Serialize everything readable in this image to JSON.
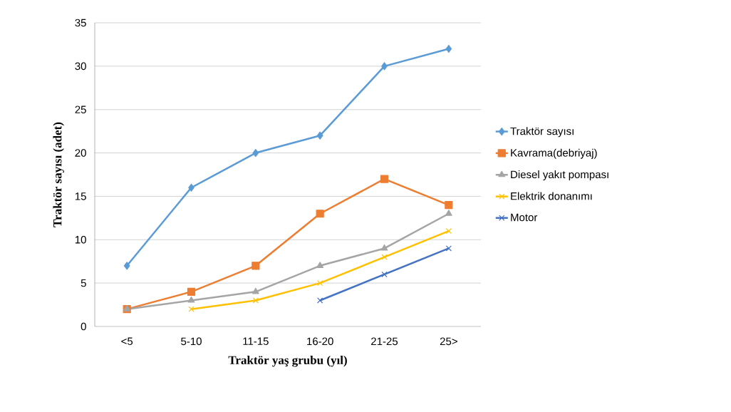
{
  "chart_data": {
    "type": "line",
    "xlabel": "Traktör yaş grubu (yıl)",
    "ylabel": "Traktör sayısı (adet)",
    "categories": [
      "<5",
      "5-10",
      "11-15",
      "16-20",
      "21-25",
      "25>"
    ],
    "series": [
      {
        "name": "Traktör sayısı",
        "color": "#5b9bd5",
        "marker": "diamond",
        "values": [
          7,
          16,
          20,
          22,
          30,
          32
        ]
      },
      {
        "name": "Kavrama(debriyaj)",
        "color": "#ed7d31",
        "marker": "square",
        "values": [
          2,
          4,
          7,
          13,
          17,
          14
        ]
      },
      {
        "name": "Diesel yakıt pompası",
        "color": "#a5a5a5",
        "marker": "triangle",
        "values": [
          2,
          3,
          4,
          7,
          9,
          13
        ]
      },
      {
        "name": "Elektrik donanımı",
        "color": "#ffc000",
        "marker": "cross",
        "values": [
          null,
          2,
          3,
          5,
          8,
          11
        ]
      },
      {
        "name": "Motor",
        "color": "#4472c4",
        "marker": "cross",
        "values": [
          null,
          null,
          null,
          3,
          6,
          9
        ]
      }
    ],
    "ylim": [
      0,
      35
    ],
    "yticks": [
      0,
      5,
      10,
      15,
      20,
      25,
      30,
      35
    ],
    "grid": "y",
    "legend": "right",
    "line_style": "solid"
  }
}
